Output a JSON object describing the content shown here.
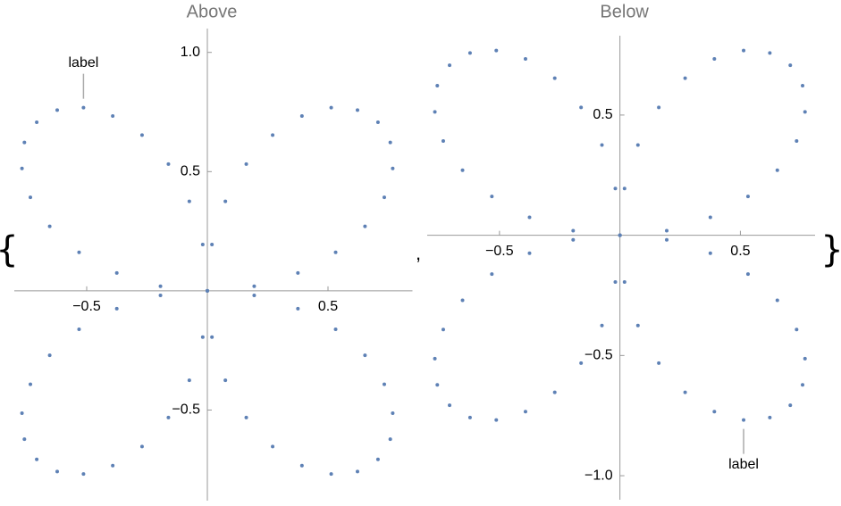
{
  "list": {
    "open": "{",
    "separator": ",",
    "close": "}"
  },
  "chart_data": [
    {
      "type": "scatter",
      "title": "Above",
      "color": "#5e81b5",
      "x": [
        0,
        0.1942,
        0.3753,
        0.5316,
        0.6533,
        0.7333,
        0.7682,
        0.7581,
        0.7071,
        0.6222,
        0.5133,
        0.392,
        0.2706,
        0.1613,
        0.0747,
        0.0191,
        0,
        0.0191,
        0.0747,
        0.1613,
        0.2706,
        0.392,
        0.5133,
        0.6222,
        0.7071,
        0.7581,
        0.7682,
        0.7333,
        0.6533,
        0.5316,
        0.3753,
        0.1942,
        0,
        -0.1942,
        -0.3753,
        -0.5316,
        -0.6533,
        -0.7333,
        -0.7682,
        -0.7581,
        -0.7071,
        -0.6222,
        -0.5133,
        -0.392,
        -0.2706,
        -0.1613,
        -0.0747,
        -0.0191,
        0,
        -0.0191,
        -0.0747,
        -0.1613,
        -0.2706,
        -0.392,
        -0.5133,
        -0.6222,
        -0.7071,
        -0.7581,
        -0.7682,
        -0.7333,
        -0.6533,
        -0.5316,
        -0.3753,
        -0.1942
      ],
      "values": [
        0,
        0.0191,
        0.0747,
        0.1613,
        0.2706,
        0.392,
        0.5133,
        0.6222,
        0.7071,
        0.7581,
        0.7682,
        0.7333,
        0.6533,
        0.5316,
        0.3753,
        0.1942,
        0,
        -0.1942,
        -0.3753,
        -0.5316,
        -0.6533,
        -0.7333,
        -0.7682,
        -0.7581,
        -0.7071,
        -0.6222,
        -0.5133,
        -0.392,
        -0.2706,
        -0.1613,
        -0.0747,
        -0.0191,
        0,
        -0.0191,
        -0.0747,
        -0.1613,
        -0.2706,
        -0.392,
        -0.5133,
        -0.6222,
        -0.7071,
        -0.7581,
        -0.7682,
        -0.7333,
        -0.6533,
        -0.5316,
        -0.3753,
        -0.1942,
        0,
        0.1942,
        0.3753,
        0.5316,
        0.6533,
        0.7333,
        0.7682,
        0.7581,
        0.7071,
        0.6222,
        0.5133,
        0.392,
        0.2706,
        0.1613,
        0.0747,
        0.0191
      ],
      "xlim": [
        -0.8,
        0.85
      ],
      "ylim": [
        -0.88,
        1.1
      ],
      "xticks": [
        {
          "value": -0.5,
          "label": "−0.5"
        },
        0.5
      ],
      "yticks": [
        {
          "value": -0.5,
          "label": "−0.5"
        },
        0.5,
        {
          "value": 1,
          "label": "1.0"
        }
      ],
      "annotations": [
        {
          "text": "label",
          "x": -0.5133,
          "y": 0.7682
        }
      ]
    },
    {
      "type": "scatter",
      "title": "Below",
      "color": "#5e81b5",
      "x": [
        0,
        0.1942,
        0.3753,
        0.5316,
        0.6533,
        0.7333,
        0.7682,
        0.7581,
        0.7071,
        0.6222,
        0.5133,
        0.392,
        0.2706,
        0.1613,
        0.0747,
        0.0191,
        0,
        0.0191,
        0.0747,
        0.1613,
        0.2706,
        0.392,
        0.5133,
        0.6222,
        0.7071,
        0.7581,
        0.7682,
        0.7333,
        0.6533,
        0.5316,
        0.3753,
        0.1942,
        0,
        -0.1942,
        -0.3753,
        -0.5316,
        -0.6533,
        -0.7333,
        -0.7682,
        -0.7581,
        -0.7071,
        -0.6222,
        -0.5133,
        -0.392,
        -0.2706,
        -0.1613,
        -0.0747,
        -0.0191,
        0,
        -0.0191,
        -0.0747,
        -0.1613,
        -0.2706,
        -0.392,
        -0.5133,
        -0.6222,
        -0.7071,
        -0.7581,
        -0.7682,
        -0.7333,
        -0.6533,
        -0.5316,
        -0.3753,
        -0.1942
      ],
      "values": [
        0,
        0.0191,
        0.0747,
        0.1613,
        0.2706,
        0.392,
        0.5133,
        0.6222,
        0.7071,
        0.7581,
        0.7682,
        0.7333,
        0.6533,
        0.5316,
        0.3753,
        0.1942,
        0,
        -0.1942,
        -0.3753,
        -0.5316,
        -0.6533,
        -0.7333,
        -0.7682,
        -0.7581,
        -0.7071,
        -0.6222,
        -0.5133,
        -0.392,
        -0.2706,
        -0.1613,
        -0.0747,
        -0.0191,
        0,
        -0.0191,
        -0.0747,
        -0.1613,
        -0.2706,
        -0.392,
        -0.5133,
        -0.6222,
        -0.7071,
        -0.7581,
        -0.7682,
        -0.7333,
        -0.6533,
        -0.5316,
        -0.3753,
        -0.1942,
        0,
        0.1942,
        0.3753,
        0.5316,
        0.6533,
        0.7333,
        0.7682,
        0.7581,
        0.7071,
        0.6222,
        0.5133,
        0.392,
        0.2706,
        0.1613,
        0.0747,
        0.0191
      ],
      "xlim": [
        -0.8,
        0.81
      ],
      "ylim": [
        -1.1,
        0.83
      ],
      "xticks": [
        {
          "value": -0.5,
          "label": "−0.5"
        },
        0.5
      ],
      "yticks": [
        {
          "value": -1,
          "label": "−1.0"
        },
        {
          "value": -0.5,
          "label": "−0.5"
        },
        0.5
      ],
      "annotations": [
        {
          "text": "label",
          "x": 0.5133,
          "y": -0.7682
        }
      ]
    }
  ]
}
